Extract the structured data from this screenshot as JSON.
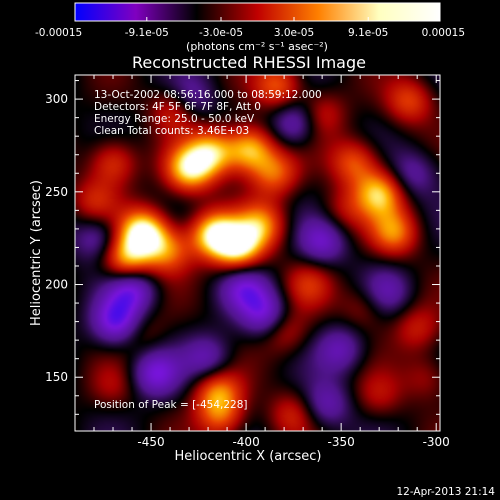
{
  "chart_data": {
    "type": "heatmap",
    "title": "Reconstructed RHESSI Image",
    "xlabel": "Heliocentric X (arcsec)",
    "ylabel": "Heliocentric Y (arcsec)",
    "xlim": [
      -490,
      -298
    ],
    "ylim": [
      121,
      313
    ],
    "x_ticks": [
      -450,
      -400,
      -350,
      -300
    ],
    "x_tick_labels": [
      "-450",
      "-400",
      "-350",
      "-300"
    ],
    "y_ticks": [
      150,
      200,
      250,
      300
    ],
    "y_tick_labels": [
      "150",
      "200",
      "250",
      "300"
    ],
    "colorbar": {
      "min": -0.00015,
      "max": 0.00015,
      "ticks": [
        -0.00015,
        -9.1e-05,
        -3e-05,
        3e-05,
        9.1e-05,
        0.00015
      ],
      "tick_labels": [
        "-0.00015",
        "-9.1e-05",
        "-3.0e-05",
        "3.0e-05",
        "9.1e-05",
        "0.00015"
      ],
      "unit_label": "(photons cm⁻² s⁻¹ asec⁻²)",
      "colors": [
        "#0000ff",
        "#8000c0",
        "#000000",
        "#c00000",
        "#ff8000",
        "#ffffc0",
        "#ffffff"
      ]
    },
    "info_lines": [
      "13-Oct-2002 08:56:16.000 to 08:59:12.000",
      "Detectors: 4F 5F 6F 7F 8F, Att 0",
      "Energy Range: 25.0 - 50.0 keV",
      "Clean     Total counts: 3.46E+03"
    ],
    "peak_label": "Position of Peak = [-454,228]",
    "peak": [
      -454,
      228
    ],
    "blobs": [
      {
        "x": -454,
        "y": 228,
        "v": 0.00015
      },
      {
        "x": -463,
        "y": 213,
        "v": 0.00011
      },
      {
        "x": -441,
        "y": 218,
        "v": 8e-05
      },
      {
        "x": -417,
        "y": 227,
        "v": 0.000135
      },
      {
        "x": -404,
        "y": 220,
        "v": 0.00013
      },
      {
        "x": -392,
        "y": 232,
        "v": 9e-05
      },
      {
        "x": -430,
        "y": 262,
        "v": 0.00012
      },
      {
        "x": -418,
        "y": 271,
        "v": 0.00011
      },
      {
        "x": -398,
        "y": 273,
        "v": 0.00012
      },
      {
        "x": -385,
        "y": 260,
        "v": 8e-05
      },
      {
        "x": -470,
        "y": 266,
        "v": 7e-05
      },
      {
        "x": -480,
        "y": 245,
        "v": 5e-05
      },
      {
        "x": -437,
        "y": 295,
        "v": 7e-05
      },
      {
        "x": -383,
        "y": 307,
        "v": 8e-05
      },
      {
        "x": -360,
        "y": 292,
        "v": 5e-05
      },
      {
        "x": -343,
        "y": 266,
        "v": 8e-05
      },
      {
        "x": -330,
        "y": 249,
        "v": 0.00011
      },
      {
        "x": -322,
        "y": 228,
        "v": 9e-05
      },
      {
        "x": -314,
        "y": 299,
        "v": 7e-05
      },
      {
        "x": -349,
        "y": 240,
        "v": 4e-05
      },
      {
        "x": -367,
        "y": 200,
        "v": 5e-05
      },
      {
        "x": -338,
        "y": 188,
        "v": 4e-05
      },
      {
        "x": -310,
        "y": 176,
        "v": 5e-05
      },
      {
        "x": -380,
        "y": 175,
        "v": 5e-05
      },
      {
        "x": -415,
        "y": 142,
        "v": 9e-05
      },
      {
        "x": -413,
        "y": 128,
        "v": 7e-05
      },
      {
        "x": -376,
        "y": 130,
        "v": 5e-05
      },
      {
        "x": -330,
        "y": 140,
        "v": 4e-05
      },
      {
        "x": -305,
        "y": 150,
        "v": 4e-05
      },
      {
        "x": -455,
        "y": 174,
        "v": 3e-05
      },
      {
        "x": -470,
        "y": 145,
        "v": 3e-05
      },
      {
        "x": -460,
        "y": 198,
        "v": -9e-05
      },
      {
        "x": -468,
        "y": 180,
        "v": -0.0001
      },
      {
        "x": -448,
        "y": 152,
        "v": -8e-05
      },
      {
        "x": -401,
        "y": 198,
        "v": -7e-05
      },
      {
        "x": -390,
        "y": 184,
        "v": -8e-05
      },
      {
        "x": -420,
        "y": 160,
        "v": -6e-05
      },
      {
        "x": -360,
        "y": 223,
        "v": -7e-05
      },
      {
        "x": -350,
        "y": 165,
        "v": -6e-05
      },
      {
        "x": -374,
        "y": 287,
        "v": -7e-05
      },
      {
        "x": -430,
        "y": 300,
        "v": -6e-05
      },
      {
        "x": -478,
        "y": 225,
        "v": -6e-05
      },
      {
        "x": -326,
        "y": 196,
        "v": -5e-05
      },
      {
        "x": -312,
        "y": 260,
        "v": -5e-05
      },
      {
        "x": -358,
        "y": 135,
        "v": -6e-05
      }
    ]
  },
  "footer_timestamp": "12-Apr-2013 21:14"
}
